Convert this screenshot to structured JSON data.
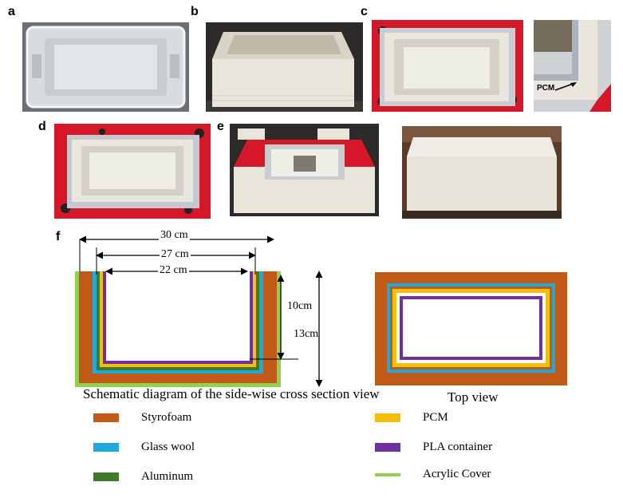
{
  "panels": {
    "a": "a",
    "b": "b",
    "c": "c",
    "d": "d",
    "e": "e",
    "f": "f"
  },
  "photo_labels": {
    "pcm_label": "PCM"
  },
  "dimensions": {
    "width_30": "30 cm",
    "width_27": "27 cm",
    "width_22": "22 cm",
    "height_10": "10cm",
    "height_13": "13cm"
  },
  "captions": {
    "side_view": "Schematic diagram of the side-wise cross section view",
    "top_view": "Top view"
  },
  "colors": {
    "styrofoam": "#c05a16",
    "glass_wool": "#1ea9d8",
    "aluminum": "#3f7a2a",
    "pcm": "#f5be0a",
    "pla": "#7030a0",
    "acrylic": "#92d050",
    "tape_red": "#d4182a",
    "box_white": "#e9e7dc"
  },
  "legend": [
    {
      "label": "Styrofoam",
      "color": "#c05a16",
      "kind": "bar"
    },
    {
      "label": "Glass wool",
      "color": "#1ea9d8",
      "kind": "bar"
    },
    {
      "label": "Aluminum",
      "color": "#3f7a2a",
      "kind": "bar"
    },
    {
      "label": "PCM",
      "color": "#f5be0a",
      "kind": "bar"
    },
    {
      "label": "PLA container",
      "color": "#7030a0",
      "kind": "bar"
    },
    {
      "label": "Acrylic Cover",
      "color": "#92d050",
      "kind": "line"
    }
  ]
}
